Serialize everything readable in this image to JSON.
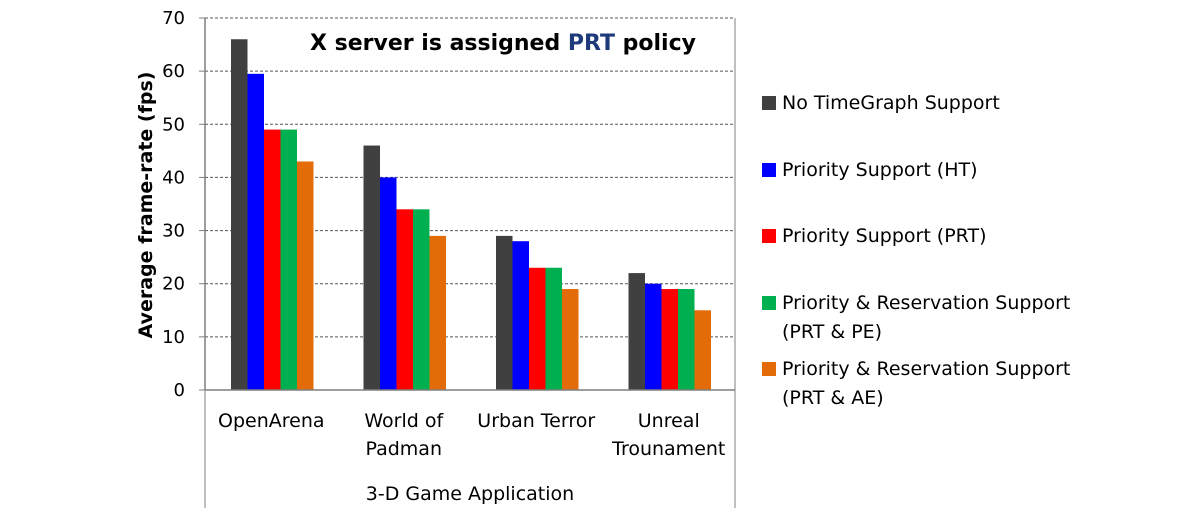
{
  "colors": {
    "title_text": "#000000",
    "title_highlight": "#1f3a7a"
  },
  "chart_data": {
    "type": "bar",
    "title_prefix": "X server is assigned ",
    "title_highlight": "PRT",
    "title_suffix": " policy",
    "ylabel": "Average frame-rate (fps)",
    "xlabel": "3-D Game Application",
    "ylim": [
      0,
      70
    ],
    "yticks": [
      0,
      10,
      20,
      30,
      40,
      50,
      60,
      70
    ],
    "grid": true,
    "legend_position": "right",
    "categories": [
      [
        "OpenArena"
      ],
      [
        "World of",
        "Padman"
      ],
      [
        "Urban Terror"
      ],
      [
        "Unreal",
        "Trounament"
      ]
    ],
    "series": [
      {
        "name": [
          "No TimeGraph Support"
        ],
        "color": "#404040",
        "values": [
          66,
          46,
          29,
          22
        ]
      },
      {
        "name": [
          "Priority Support (HT)"
        ],
        "color": "#0000ff",
        "values": [
          59.5,
          40,
          28,
          20
        ]
      },
      {
        "name": [
          "Priority Support (PRT)"
        ],
        "color": "#ff0000",
        "values": [
          49,
          34,
          23,
          19
        ]
      },
      {
        "name": [
          "Priority & Reservation Support",
          "(PRT & PE)"
        ],
        "color": "#00b050",
        "values": [
          49,
          34,
          23,
          19
        ]
      },
      {
        "name": [
          "Priority & Reservation Support",
          "(PRT & AE)"
        ],
        "color": "#e36c09",
        "values": [
          43,
          29,
          19,
          15
        ]
      }
    ]
  }
}
